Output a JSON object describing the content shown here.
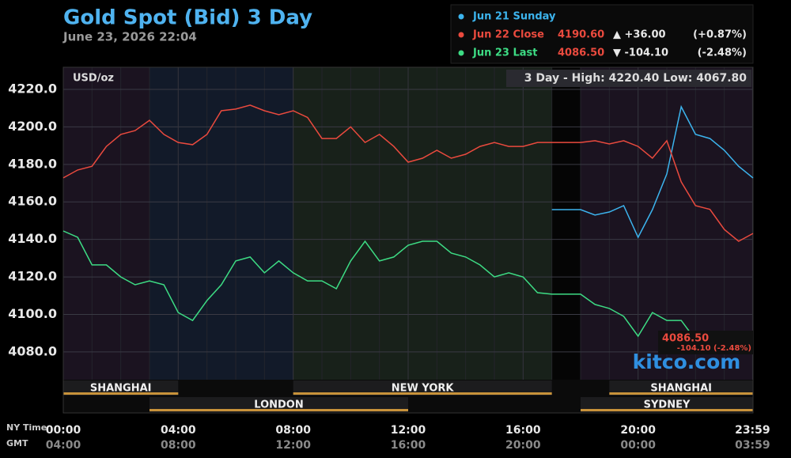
{
  "chart_data": {
    "type": "line",
    "title": "Gold Spot (Bid) 3 Day",
    "subtitle": "June 23, 2026 22:04",
    "unit_label": "USD/oz",
    "range_info": "3 Day - High: 4220.40  Low: 4067.80",
    "x": [
      0,
      0.5,
      1,
      1.5,
      2,
      2.5,
      3,
      3.5,
      4,
      4.5,
      5,
      5.5,
      6,
      6.5,
      7,
      7.5,
      8,
      8.5,
      9,
      9.5,
      10,
      10.5,
      11,
      11.5,
      12,
      12.5,
      13,
      13.5,
      14,
      14.5,
      15,
      15.5,
      16,
      16.5,
      17,
      17.5,
      18,
      18.5,
      19,
      19.5,
      20,
      20.5,
      21,
      21.5,
      22,
      22.5,
      23,
      23.5,
      24
    ],
    "series": [
      {
        "name": "Jun 21 Sunday",
        "color": "#3cb4ee",
        "values": [
          null,
          null,
          null,
          null,
          null,
          null,
          null,
          null,
          null,
          null,
          null,
          null,
          null,
          null,
          null,
          null,
          null,
          null,
          null,
          null,
          null,
          null,
          null,
          null,
          null,
          null,
          null,
          null,
          null,
          null,
          null,
          null,
          null,
          null,
          4155.9,
          4155.9,
          4155.9,
          4153,
          4154.6,
          4158,
          4141.1,
          4155.9,
          4174.9,
          4210.7,
          4196,
          4193.8,
          4187.5,
          4179,
          4172.8
        ]
      },
      {
        "name": "Jun 22 Close",
        "color": "#ea4a3e",
        "last": "4190.60",
        "change": "▲ +36.00",
        "pct": "(+0.87%)",
        "values": [
          4172.8,
          4177,
          4179,
          4189.6,
          4196,
          4198,
          4203.5,
          4196,
          4191.7,
          4190.5,
          4196,
          4208.6,
          4209.5,
          4211.6,
          4208.6,
          4206.5,
          4208.6,
          4205,
          4193.8,
          4193.8,
          4200,
          4191.7,
          4196,
          4189.6,
          4181.2,
          4183.3,
          4187.5,
          4183.3,
          4185.4,
          4189.6,
          4191.7,
          4189.6,
          4189.6,
          4191.7,
          4191.7,
          4191.7,
          4191.7,
          4192.6,
          4190.9,
          4192.6,
          4189.6,
          4183.3,
          4192.6,
          4170.7,
          4158,
          4156,
          4145.3,
          4139,
          4143.2
        ]
      },
      {
        "name": "Jun 23 Last",
        "color": "#3ddc84",
        "last": "4086.50",
        "change": "▼ -104.10",
        "pct": "(-2.48%)",
        "values": [
          4144.5,
          4141.1,
          4126.4,
          4126.4,
          4120,
          4115.8,
          4117.9,
          4115.8,
          4101,
          4096.8,
          4107.4,
          4115.8,
          4128.5,
          4130.6,
          4122.2,
          4128.5,
          4122.2,
          4117.9,
          4117.9,
          4113.7,
          4128.5,
          4139,
          4128.5,
          4130.6,
          4136.9,
          4139,
          4139,
          4132.7,
          4130.6,
          4126.4,
          4120,
          4122.2,
          4120,
          4111.6,
          4110.8,
          4110.8,
          4110.8,
          4105.3,
          4103.2,
          4099,
          4088.4,
          4101,
          4096.8,
          4096.8,
          4086.5,
          null,
          null,
          null,
          null
        ]
      }
    ],
    "xlim": [
      0,
      24
    ],
    "xticks": [
      {
        "value": 0,
        "label": "00:00"
      },
      {
        "value": 4,
        "label": "04:00"
      },
      {
        "value": 8,
        "label": "08:00"
      },
      {
        "value": 12,
        "label": "12:00"
      },
      {
        "value": 16,
        "label": "16:00"
      },
      {
        "value": 20,
        "label": "20:00"
      },
      {
        "value": 23.983,
        "label": "23:59"
      }
    ],
    "xtick_labels_gmt": [
      "04:00",
      "08:00",
      "12:00",
      "16:00",
      "20:00",
      "00:00",
      "03:59"
    ],
    "x_row_labels": [
      "NY Time",
      "GMT"
    ],
    "ylim": [
      4065.2,
      4231.8
    ],
    "yticks": [
      {
        "value": 4080,
        "label": "4080.0"
      },
      {
        "value": 4100,
        "label": "4100.0"
      },
      {
        "value": 4120,
        "label": "4120.0"
      },
      {
        "value": 4140,
        "label": "4140.0"
      },
      {
        "value": 4160,
        "label": "4160.0"
      },
      {
        "value": 4180,
        "label": "4180.0"
      },
      {
        "value": 4200,
        "label": "4200.0"
      },
      {
        "value": 4220,
        "label": "4220.0"
      }
    ],
    "grid": true,
    "last_label": "4086.50",
    "last_change_label": "-104.10 (-2.48%)",
    "brand": "kitco.com",
    "sessions": [
      [
        {
          "label": "SHANGHAI",
          "start": 0,
          "end": 4
        },
        {
          "label": "NEW YORK",
          "start": 8,
          "end": 17
        },
        {
          "label": "SHANGHAI",
          "start": 19,
          "end": 24
        }
      ],
      [
        {
          "label": "LONDON",
          "start": 3,
          "end": 12
        },
        {
          "label": "SYDNEY",
          "start": 18,
          "end": 24
        }
      ]
    ]
  }
}
